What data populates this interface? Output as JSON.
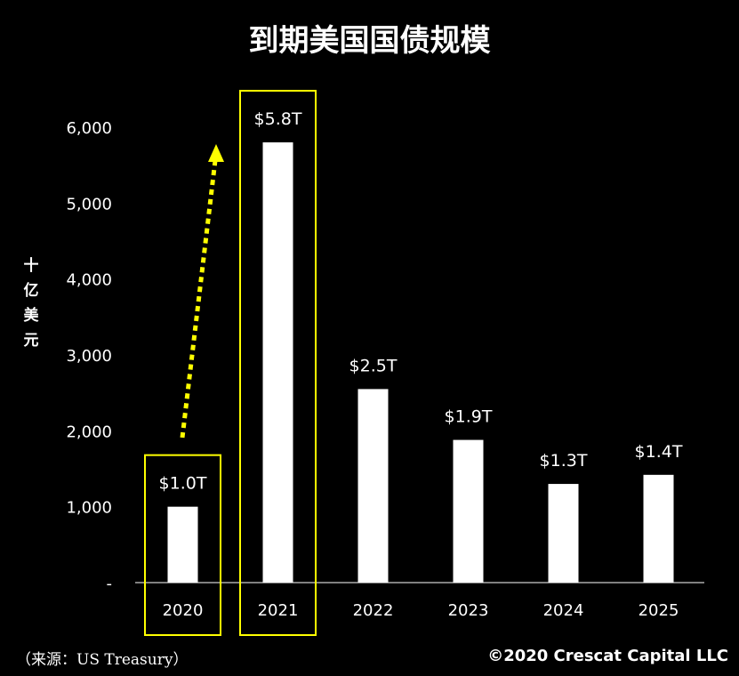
{
  "chart_data": {
    "type": "bar",
    "title": "到期美国国债规模",
    "ylabel": "十亿美元",
    "categories": [
      "2020",
      "2021",
      "2022",
      "2023",
      "2024",
      "2025"
    ],
    "values": [
      1000,
      5800,
      2550,
      1880,
      1300,
      1420
    ],
    "data_labels": [
      "$1.0T",
      "$5.8T",
      "$2.5T",
      "$1.9T",
      "$1.3T",
      "$1.4T"
    ],
    "yticks": [
      "-",
      "1,000",
      "2,000",
      "3,000",
      "4,000",
      "5,000",
      "6,000"
    ],
    "ylim": [
      0,
      6000
    ],
    "grid": false,
    "highlighted_categories": [
      "2020",
      "2021"
    ],
    "colors": {
      "background": "#000000",
      "bars": "#ffffff",
      "highlight": "#ffff00",
      "text": "#ffffff"
    }
  },
  "footer": {
    "source": "（来源：US Treasury）",
    "copyright": "©2020 Crescat Capital LLC"
  }
}
